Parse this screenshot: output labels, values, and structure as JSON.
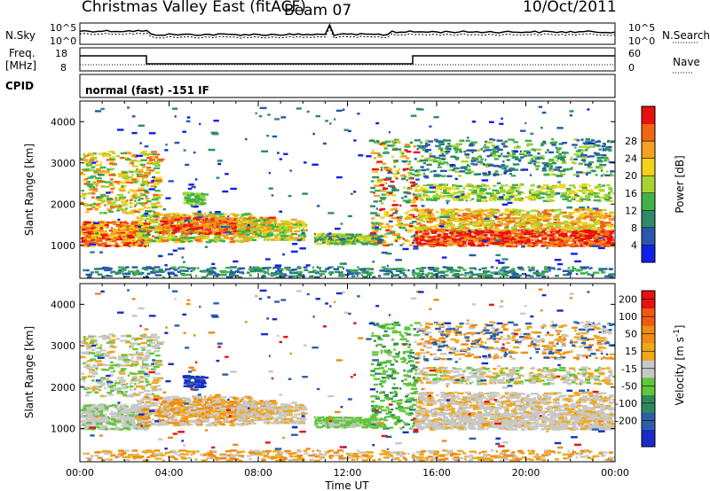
{
  "header": {
    "title": "Christmas Valley East (fitACF)",
    "beam": "Beam 07",
    "date": "10/Oct/2011"
  },
  "noise_panel": {
    "left_label": "N.Sky",
    "left_ticks": [
      "10^5",
      "10^0"
    ],
    "right_ticks": [
      "10^5",
      "10^0"
    ],
    "right_label": "N.Search"
  },
  "freq_panel": {
    "left_label_1": "Freq.",
    "left_label_2": "[MHz]",
    "left_ticks": [
      "18",
      "8"
    ],
    "right_ticks": [
      "60",
      "0"
    ],
    "right_label": "Nave"
  },
  "cpid_panel": {
    "label": "CPID",
    "text": "normal (fast) -151 IF"
  },
  "chart_data": [
    {
      "type": "heatmap",
      "parameter": "Power",
      "ylabel": "Slant Range [km]",
      "ylim": [
        200,
        4500
      ],
      "yticks": [
        "1000",
        "2000",
        "3000",
        "4000"
      ],
      "xticks": [
        "00:00",
        "04:00",
        "08:00",
        "12:00",
        "16:00",
        "20:00",
        "00:00"
      ],
      "xlim_hours": [
        0,
        24
      ],
      "colorbar": {
        "label": "Power [dB]",
        "ticks": [
          "4",
          "8",
          "12",
          "16",
          "20",
          "24",
          "28"
        ],
        "colors": [
          "#1020e8",
          "#2a55b0",
          "#2d8a6a",
          "#3fb24a",
          "#a8d430",
          "#f2d21a",
          "#f6a020",
          "#f26512",
          "#e81010"
        ]
      }
    },
    {
      "type": "heatmap",
      "parameter": "Velocity",
      "ylabel": "Slant Range [km]",
      "ylim": [
        200,
        4500
      ],
      "yticks": [
        "1000",
        "2000",
        "3000",
        "4000"
      ],
      "xticks": [
        "00:00",
        "04:00",
        "08:00",
        "12:00",
        "16:00",
        "20:00",
        "00:00"
      ],
      "xlim_hours": [
        0,
        24
      ],
      "xlabel": "Time UT",
      "colorbar": {
        "label": "Velocity [m s^-1]",
        "ticks": [
          "200",
          "100",
          "50",
          "15",
          "-15",
          "-50",
          "-100",
          "-200"
        ],
        "colors": [
          "#1a2cc8",
          "#2d5fa8",
          "#2e8a5c",
          "#62c63a",
          "#c8c8c8",
          "#f0a818",
          "#f08a10",
          "#f05a10",
          "#e81010"
        ]
      }
    }
  ]
}
